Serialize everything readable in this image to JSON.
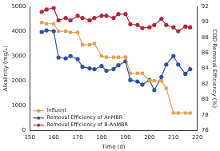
{
  "chart_data": {
    "type": "line",
    "x_label": "Time (d)",
    "y_label": "Alkalinity (mg/L)",
    "y2_label": "COD Removal Efficiency (%)",
    "x": [
      155,
      157,
      160,
      162,
      165,
      167,
      170,
      172,
      175,
      177,
      180,
      182,
      185,
      187,
      190,
      192,
      195,
      197,
      200,
      202,
      205,
      207,
      210,
      212,
      215,
      217
    ],
    "xlim": [
      150,
      220
    ],
    "xticks": [
      150,
      160,
      170,
      180,
      190,
      200,
      210,
      220
    ],
    "ylim": [
      0,
      5000
    ],
    "yticks": [
      0,
      1000,
      2000,
      3000,
      4000,
      5000
    ],
    "y2lim": [
      76,
      92
    ],
    "y2ticks": [
      76,
      78,
      80,
      82,
      84,
      86,
      88,
      90,
      92
    ],
    "grid": false,
    "legend": "lower left",
    "series": [
      {
        "name": "Influent",
        "color": "#e0a050",
        "marker": "square",
        "values": [
          4350,
          4300,
          4300,
          4000,
          4000,
          3950,
          3950,
          3450,
          3450,
          3500,
          3000,
          2950,
          2950,
          2950,
          2950,
          2300,
          2300,
          2300,
          2000,
          2000,
          2000,
          1700,
          700,
          700,
          700,
          700
        ]
      },
      {
        "name": "Removal Efficiency of AnMBR",
        "color": "#2e4e9e",
        "marker": "circle",
        "axis": "y2",
        "values": [
          88.7,
          88.9,
          88.8,
          85.4,
          85.3,
          85.6,
          85.2,
          84.2,
          84.0,
          83.9,
          84.3,
          83.7,
          83.9,
          84.4,
          84.9,
          82.5,
          82.3,
          81.9,
          82.5,
          81.2,
          82.9,
          84.5,
          85.6,
          84.5,
          83.3,
          83.9
        ]
      },
      {
        "name": "Removal Efficiency of B-AnMBR",
        "color": "#b2283c",
        "marker": "circle",
        "axis": "y2",
        "values": [
          91.3,
          91.6,
          91.8,
          90.2,
          90.5,
          90.2,
          90.8,
          90.5,
          90.2,
          90.5,
          90.8,
          90.8,
          90.5,
          91.0,
          91.0,
          89.7,
          89.6,
          89.2,
          89.3,
          89.6,
          90.4,
          89.6,
          89.3,
          88.8,
          89.4,
          89.3
        ]
      }
    ]
  }
}
